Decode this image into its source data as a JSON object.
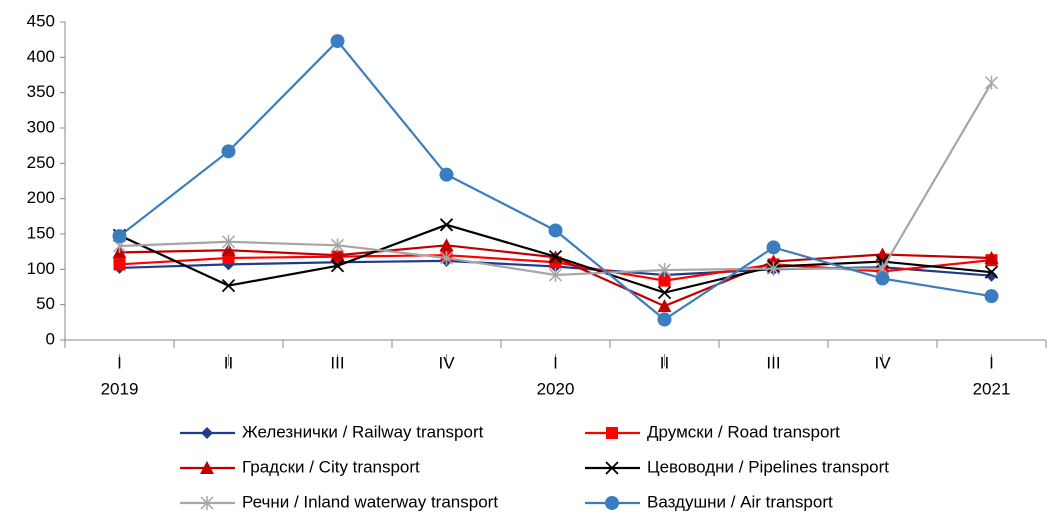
{
  "chart_data": {
    "type": "line",
    "categories": [
      "I",
      "II",
      "III",
      "IV",
      "I",
      "II",
      "III",
      "IV",
      "I"
    ],
    "years": [
      "2019",
      null,
      null,
      null,
      "2020",
      null,
      null,
      null,
      "2021"
    ],
    "ylim": [
      0,
      450
    ],
    "yticks": [
      0,
      50,
      100,
      150,
      200,
      250,
      300,
      350,
      400,
      450
    ],
    "grid": false,
    "legend": "bottom",
    "series": [
      {
        "name": "Железнички / Railway transport",
        "color": "#1f3c88",
        "marker": "diamond",
        "values": [
          102,
          107,
          110,
          112,
          104,
          92,
          100,
          103,
          91
        ]
      },
      {
        "name": "Друмски / Road transport",
        "color": "#ff0000",
        "marker": "square",
        "values": [
          107,
          116,
          118,
          120,
          110,
          84,
          107,
          97,
          113
        ]
      },
      {
        "name": "Градски / City transport",
        "color": "#c00000",
        "marker": "triangle",
        "values": [
          124,
          127,
          120,
          134,
          117,
          48,
          111,
          121,
          116
        ]
      },
      {
        "name": "Цевоводни / Pipelines transport",
        "color": "#000000",
        "marker": "x",
        "values": [
          148,
          77,
          105,
          163,
          118,
          67,
          104,
          111,
          96
        ]
      },
      {
        "name": "Речни / Inland waterway transport",
        "color": "#a6a6a6",
        "marker": "star",
        "values": [
          133,
          139,
          134,
          116,
          92,
          99,
          101,
          101,
          364
        ]
      },
      {
        "name": "Ваздушни / Air transport",
        "color": "#3a7ebf",
        "marker": "circle",
        "values": [
          147,
          267,
          423,
          234,
          155,
          29,
          131,
          87,
          62
        ]
      }
    ]
  }
}
